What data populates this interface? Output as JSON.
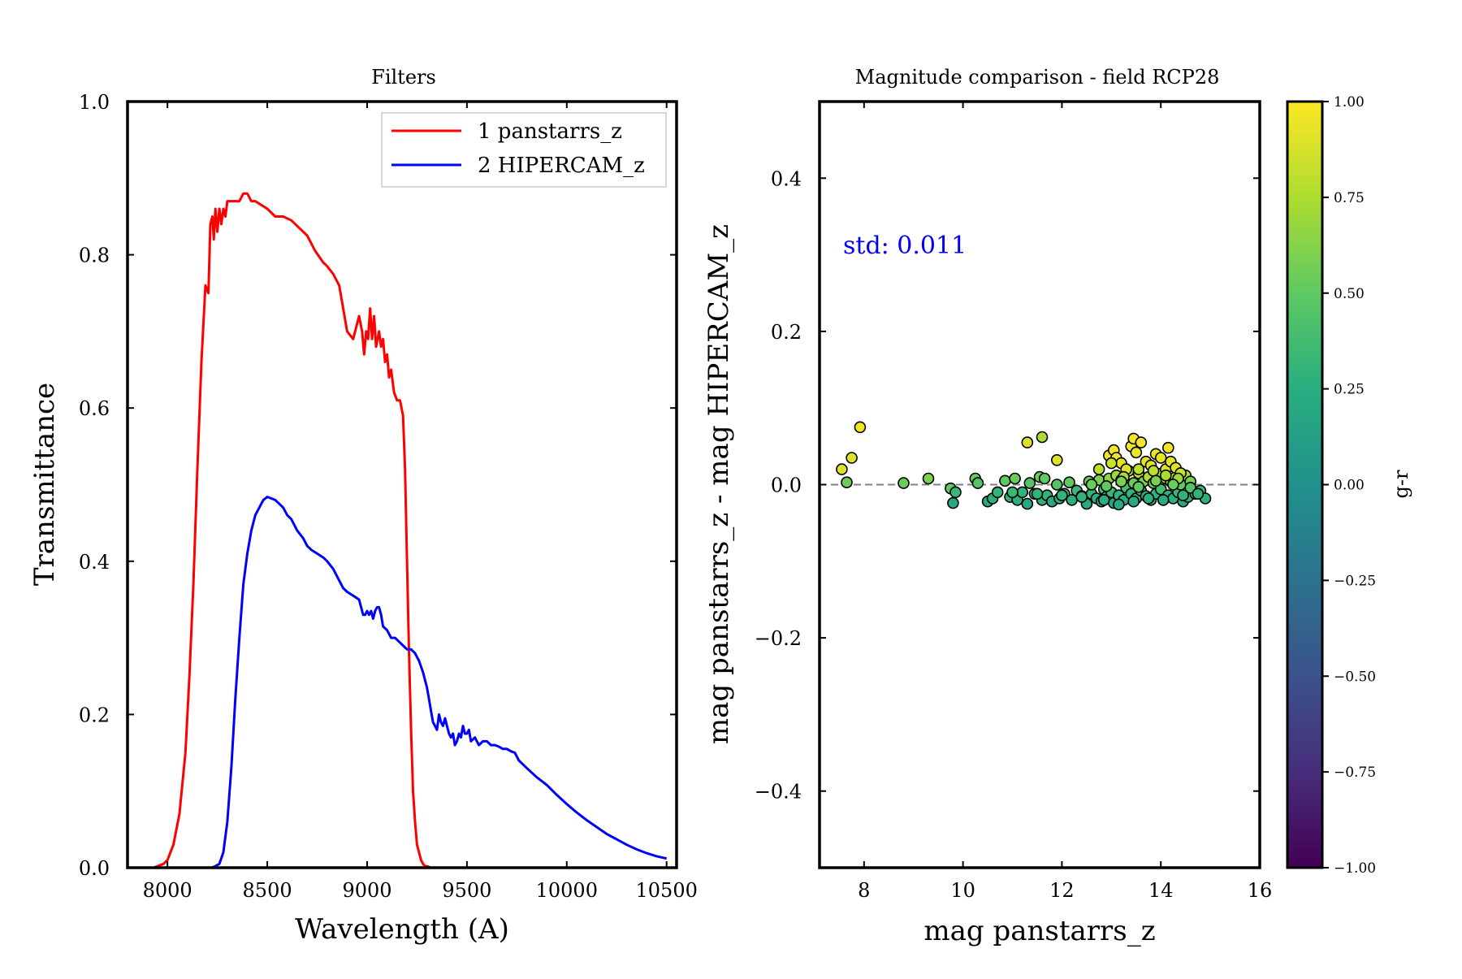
{
  "chart_data": [
    {
      "type": "line",
      "title": "Filters",
      "xlabel": "Wavelength (A)",
      "ylabel": "Transmittance",
      "xlim": [
        7800,
        10550
      ],
      "ylim": [
        0.0,
        1.0
      ],
      "xticks": [
        8000,
        8500,
        9000,
        9500,
        10000,
        10500
      ],
      "xtick_labels": [
        "8000",
        "8500",
        "9000",
        "9500",
        "10000",
        "10500"
      ],
      "yticks": [
        0.0,
        0.2,
        0.4,
        0.6,
        0.8,
        1.0
      ],
      "ytick_labels": [
        "0.0",
        "0.2",
        "0.4",
        "0.6",
        "0.8",
        "1.0"
      ],
      "legend_position": "top-right",
      "grid": false,
      "series": [
        {
          "name": "1 panstarrs_z",
          "color": "#ff0000",
          "x": [
            7930,
            7980,
            8000,
            8030,
            8060,
            8090,
            8110,
            8130,
            8150,
            8170,
            8190,
            8205,
            8215,
            8225,
            8232,
            8240,
            8250,
            8260,
            8270,
            8280,
            8290,
            8300,
            8320,
            8340,
            8360,
            8380,
            8400,
            8420,
            8440,
            8470,
            8500,
            8540,
            8580,
            8620,
            8660,
            8700,
            8740,
            8780,
            8800,
            8830,
            8860,
            8880,
            8900,
            8930,
            8960,
            8975,
            8985,
            8995,
            9005,
            9015,
            9025,
            9035,
            9045,
            9060,
            9070,
            9080,
            9090,
            9100,
            9110,
            9120,
            9135,
            9150,
            9165,
            9180,
            9190,
            9200,
            9210,
            9220,
            9230,
            9240,
            9250,
            9260,
            9270,
            9280,
            9290,
            9300,
            9320,
            9340,
            9360,
            9380,
            9400,
            9420
          ],
          "y": [
            0.0,
            0.005,
            0.01,
            0.03,
            0.07,
            0.15,
            0.25,
            0.37,
            0.52,
            0.66,
            0.76,
            0.75,
            0.84,
            0.85,
            0.82,
            0.86,
            0.83,
            0.86,
            0.84,
            0.86,
            0.85,
            0.87,
            0.87,
            0.87,
            0.87,
            0.88,
            0.88,
            0.87,
            0.87,
            0.865,
            0.86,
            0.85,
            0.85,
            0.845,
            0.835,
            0.825,
            0.805,
            0.79,
            0.785,
            0.775,
            0.76,
            0.73,
            0.7,
            0.69,
            0.72,
            0.7,
            0.67,
            0.7,
            0.69,
            0.73,
            0.69,
            0.72,
            0.68,
            0.7,
            0.68,
            0.69,
            0.66,
            0.67,
            0.64,
            0.65,
            0.62,
            0.61,
            0.61,
            0.59,
            0.52,
            0.4,
            0.28,
            0.18,
            0.1,
            0.06,
            0.03,
            0.02,
            0.01,
            0.005,
            0.002,
            0.002,
            0.0,
            0.0,
            0.0,
            0.0,
            0.0,
            0.0
          ]
        },
        {
          "name": "2 HIPERCAM_z",
          "color": "#0000ff",
          "x": [
            8220,
            8240,
            8260,
            8280,
            8300,
            8320,
            8340,
            8360,
            8380,
            8400,
            8420,
            8440,
            8460,
            8480,
            8500,
            8520,
            8540,
            8560,
            8580,
            8600,
            8620,
            8650,
            8680,
            8700,
            8720,
            8750,
            8780,
            8800,
            8830,
            8860,
            8880,
            8900,
            8930,
            8960,
            8970,
            8980,
            8990,
            9000,
            9010,
            9020,
            9030,
            9040,
            9050,
            9060,
            9070,
            9080,
            9100,
            9120,
            9140,
            9160,
            9180,
            9200,
            9220,
            9240,
            9260,
            9280,
            9300,
            9310,
            9320,
            9330,
            9340,
            9350,
            9360,
            9370,
            9380,
            9390,
            9400,
            9410,
            9420,
            9430,
            9440,
            9450,
            9460,
            9470,
            9480,
            9490,
            9500,
            9510,
            9520,
            9540,
            9560,
            9580,
            9600,
            9620,
            9640,
            9660,
            9680,
            9700,
            9720,
            9740,
            9760,
            9780,
            9800,
            9850,
            9900,
            9950,
            10000,
            10050,
            10100,
            10150,
            10200,
            10250,
            10300,
            10350,
            10400,
            10450,
            10500
          ],
          "y": [
            0.0,
            0.002,
            0.005,
            0.02,
            0.06,
            0.13,
            0.22,
            0.3,
            0.37,
            0.41,
            0.44,
            0.46,
            0.47,
            0.48,
            0.484,
            0.482,
            0.48,
            0.475,
            0.47,
            0.46,
            0.455,
            0.44,
            0.43,
            0.42,
            0.415,
            0.41,
            0.405,
            0.4,
            0.39,
            0.375,
            0.365,
            0.36,
            0.355,
            0.35,
            0.34,
            0.33,
            0.33,
            0.335,
            0.33,
            0.335,
            0.325,
            0.335,
            0.34,
            0.34,
            0.33,
            0.315,
            0.31,
            0.3,
            0.3,
            0.295,
            0.29,
            0.285,
            0.285,
            0.28,
            0.27,
            0.255,
            0.235,
            0.22,
            0.205,
            0.19,
            0.185,
            0.18,
            0.2,
            0.19,
            0.185,
            0.195,
            0.185,
            0.175,
            0.17,
            0.175,
            0.16,
            0.165,
            0.175,
            0.17,
            0.185,
            0.175,
            0.175,
            0.18,
            0.165,
            0.17,
            0.16,
            0.165,
            0.165,
            0.16,
            0.16,
            0.158,
            0.155,
            0.155,
            0.152,
            0.15,
            0.14,
            0.135,
            0.13,
            0.118,
            0.108,
            0.095,
            0.083,
            0.072,
            0.062,
            0.053,
            0.044,
            0.037,
            0.03,
            0.024,
            0.019,
            0.015,
            0.012
          ]
        }
      ]
    },
    {
      "type": "scatter",
      "title": "Magnitude comparison - field RCP28",
      "xlabel": "mag panstarrs_z",
      "ylabel": "mag panstarrs_z - mag HIPERCAM_z",
      "xlim": [
        7.1,
        16.0
      ],
      "ylim": [
        -0.5,
        0.5
      ],
      "xticks": [
        8,
        10,
        12,
        14,
        16
      ],
      "xtick_labels": [
        "8",
        "10",
        "12",
        "14",
        "16"
      ],
      "yticks": [
        0.4,
        0.2,
        0.0,
        -0.2,
        -0.4
      ],
      "ytick_labels": [
        "0.4",
        "0.2",
        "0.0",
        "−0.2",
        "−0.4"
      ],
      "annotation": "std: 0.011",
      "annotation_color": "#0000ff",
      "reference_line": 0.0,
      "grid": false,
      "colorbar": {
        "label": "g-r",
        "range": [
          -1.0,
          1.0
        ],
        "colormap": "viridis",
        "ticks": [
          1.0,
          0.75,
          0.5,
          0.25,
          0.0,
          -0.25,
          -0.5,
          -0.75,
          -1.0
        ],
        "tick_labels": [
          "1.00",
          "0.75",
          "0.50",
          "0.25",
          "0.00",
          "−0.25",
          "−0.50",
          "−0.75",
          "−1.00"
        ]
      },
      "points": {
        "x": [
          7.55,
          7.65,
          7.75,
          7.92,
          8.8,
          9.3,
          9.75,
          9.8,
          9.85,
          10.25,
          10.3,
          10.5,
          10.6,
          10.7,
          10.85,
          10.95,
          11.05,
          11.1,
          11.2,
          11.3,
          11.35,
          11.45,
          11.55,
          11.6,
          11.65,
          11.7,
          11.8,
          11.9,
          11.95,
          12.05,
          12.15,
          12.2,
          12.3,
          12.4,
          12.5,
          12.55,
          12.6,
          12.7,
          12.75,
          12.8,
          12.85,
          12.9,
          12.95,
          13.0,
          13.05,
          13.1,
          13.15,
          13.2,
          13.25,
          13.3,
          13.35,
          13.4,
          13.45,
          13.5,
          13.55,
          13.6,
          13.65,
          13.7,
          13.75,
          13.8,
          13.85,
          13.9,
          13.95,
          14.0,
          14.05,
          14.1,
          14.15,
          14.2,
          14.25,
          14.3,
          14.35,
          14.4,
          14.45,
          14.5,
          14.55,
          14.6,
          14.7,
          14.8,
          14.9,
          11.3,
          11.6,
          11.9,
          12.95,
          13.05,
          13.1,
          13.2,
          13.3,
          13.4,
          13.45,
          13.5,
          13.6,
          13.7,
          13.8,
          13.9,
          14.0,
          14.1,
          14.15,
          14.2,
          14.3,
          14.4,
          12.75,
          13.0,
          13.25,
          13.55,
          13.85,
          14.1,
          14.35,
          12.6,
          12.9,
          13.2,
          13.55,
          13.9,
          14.25,
          14.6,
          11.0,
          11.5,
          12.0,
          12.4,
          12.85,
          13.15,
          13.45,
          13.75,
          14.05,
          14.45,
          14.75
        ],
        "y": [
          0.02,
          0.003,
          0.035,
          0.075,
          0.002,
          0.008,
          -0.005,
          -0.024,
          -0.01,
          0.008,
          0.002,
          -0.022,
          -0.018,
          -0.01,
          0.005,
          -0.016,
          0.008,
          -0.02,
          -0.01,
          -0.025,
          0.002,
          -0.012,
          0.01,
          -0.02,
          0.008,
          -0.014,
          -0.022,
          0.0,
          -0.018,
          -0.012,
          0.003,
          -0.02,
          -0.008,
          -0.015,
          -0.025,
          0.004,
          -0.012,
          -0.018,
          0.006,
          -0.022,
          -0.006,
          -0.016,
          0.008,
          -0.01,
          -0.024,
          0.012,
          -0.014,
          0.006,
          -0.02,
          -0.004,
          0.018,
          -0.012,
          0.002,
          -0.018,
          0.015,
          -0.008,
          0.004,
          -0.015,
          0.01,
          -0.02,
          0.002,
          -0.012,
          0.014,
          -0.006,
          -0.02,
          0.008,
          -0.014,
          0.004,
          -0.018,
          0.01,
          -0.01,
          0.0,
          -0.022,
          0.012,
          -0.016,
          0.004,
          -0.012,
          -0.008,
          -0.018,
          0.055,
          0.062,
          0.032,
          0.038,
          0.045,
          0.035,
          0.028,
          0.02,
          0.05,
          0.06,
          0.042,
          0.055,
          0.03,
          0.025,
          0.04,
          0.035,
          0.02,
          0.048,
          0.03,
          0.022,
          0.015,
          0.02,
          0.028,
          0.01,
          0.02,
          0.018,
          0.012,
          0.008,
          0.0,
          -0.002,
          0.004,
          -0.003,
          0.005,
          0.0,
          -0.004,
          -0.01,
          -0.012,
          -0.014,
          -0.016,
          -0.02,
          -0.026,
          -0.022,
          -0.018,
          -0.02,
          -0.014,
          -0.012
        ],
        "color_values": [
          0.9,
          0.55,
          0.9,
          0.95,
          0.55,
          0.6,
          0.5,
          0.2,
          0.35,
          0.55,
          0.45,
          0.2,
          0.25,
          0.3,
          0.5,
          0.3,
          0.55,
          0.25,
          0.3,
          0.2,
          0.45,
          0.3,
          0.55,
          0.25,
          0.5,
          0.3,
          0.2,
          0.45,
          0.25,
          0.3,
          0.5,
          0.25,
          0.35,
          0.3,
          0.2,
          0.55,
          0.3,
          0.25,
          0.6,
          0.2,
          0.4,
          0.3,
          0.65,
          0.35,
          0.2,
          0.7,
          0.3,
          0.6,
          0.25,
          0.4,
          0.8,
          0.3,
          0.55,
          0.25,
          0.8,
          0.35,
          0.6,
          0.3,
          0.75,
          0.25,
          0.55,
          0.3,
          0.8,
          0.4,
          0.25,
          0.7,
          0.3,
          0.6,
          0.25,
          0.75,
          0.35,
          0.5,
          0.2,
          0.75,
          0.3,
          0.6,
          0.35,
          0.35,
          0.25,
          0.9,
          0.75,
          0.9,
          0.95,
          0.97,
          0.95,
          0.93,
          0.9,
          0.97,
          0.97,
          0.95,
          0.97,
          0.92,
          0.9,
          0.95,
          0.93,
          0.9,
          0.96,
          0.92,
          0.9,
          0.85,
          0.8,
          0.85,
          0.75,
          0.8,
          0.8,
          0.75,
          0.7,
          0.55,
          0.5,
          0.6,
          0.5,
          0.6,
          0.55,
          0.45,
          0.35,
          0.3,
          0.3,
          0.28,
          0.25,
          0.2,
          0.22,
          0.25,
          0.22,
          0.28,
          0.3
        ]
      }
    }
  ]
}
